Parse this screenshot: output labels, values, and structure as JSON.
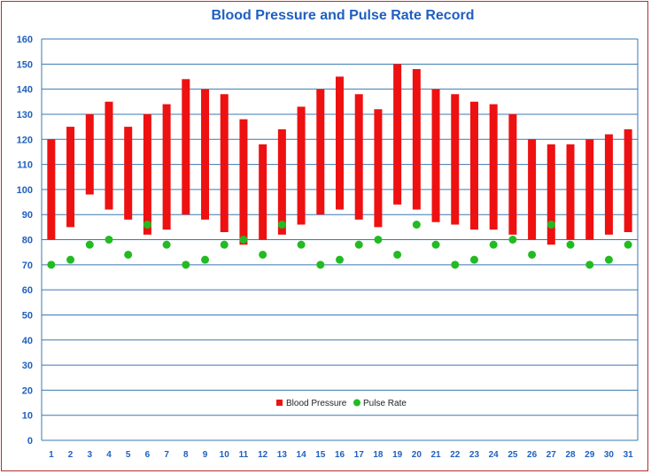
{
  "chart_data": {
    "type": "bar",
    "title": "Blood Pressure and Pulse Rate Record",
    "categories": [
      "1",
      "2",
      "3",
      "4",
      "5",
      "6",
      "7",
      "8",
      "9",
      "10",
      "11",
      "12",
      "13",
      "14",
      "15",
      "16",
      "17",
      "18",
      "19",
      "20",
      "21",
      "22",
      "23",
      "24",
      "25",
      "26",
      "27",
      "28",
      "29",
      "30",
      "31"
    ],
    "series": [
      {
        "name": "Blood Pressure",
        "kind": "floating-bar",
        "high": [
          120,
          125,
          130,
          135,
          125,
          130,
          134,
          144,
          140,
          138,
          128,
          118,
          124,
          133,
          140,
          145,
          138,
          132,
          150,
          148,
          140,
          138,
          135,
          134,
          130,
          120,
          118,
          118,
          120,
          122,
          124
        ],
        "low": [
          80,
          85,
          98,
          92,
          88,
          82,
          84,
          90,
          88,
          83,
          78,
          80,
          82,
          86,
          90,
          92,
          88,
          85,
          94,
          92,
          87,
          86,
          84,
          84,
          82,
          80,
          78,
          80,
          80,
          82,
          83
        ]
      },
      {
        "name": "Pulse Rate",
        "kind": "scatter",
        "values": [
          70,
          72,
          78,
          80,
          74,
          86,
          78,
          70,
          72,
          78,
          80,
          74,
          86,
          78,
          70,
          72,
          78,
          80,
          74,
          86,
          78,
          70,
          72,
          78,
          80,
          74,
          86,
          78,
          70,
          72,
          78
        ]
      }
    ],
    "yticks": [
      0,
      10,
      20,
      30,
      40,
      50,
      60,
      70,
      80,
      90,
      100,
      110,
      120,
      130,
      140,
      150,
      160
    ],
    "ylim": [
      0,
      160
    ],
    "xlabel": "",
    "ylabel": "",
    "grid": true,
    "legend": "bottom-center",
    "colors": {
      "title": "#1f5fbf",
      "ticks": "#1f5fbf",
      "axis": "#3a78b0",
      "grid": "#3a78b0",
      "bar": "#ee1111",
      "dot": "#22bb22",
      "frame": "#b03030"
    }
  }
}
